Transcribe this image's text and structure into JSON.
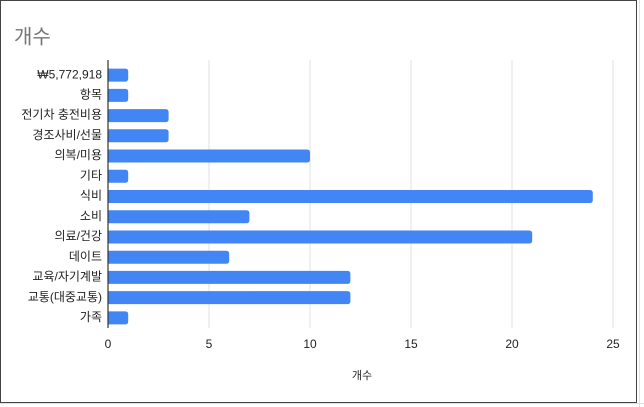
{
  "chart_data": {
    "type": "bar",
    "orientation": "horizontal",
    "title": "개수",
    "x_label": "개수",
    "categories": [
      "₩5,772,918",
      "항목",
      "전기차 충전비용",
      "경조사비/선물",
      "의복/미용",
      "기타",
      "식비",
      "소비",
      "의료/건강",
      "데이트",
      "교육/자기계발",
      "교통(대중교통)",
      "가족"
    ],
    "values": [
      1,
      1,
      3,
      3,
      10,
      1,
      24,
      7,
      21,
      6,
      12,
      12,
      1
    ],
    "color": "#4285f4",
    "xlim": [
      0,
      25
    ],
    "xticks": [
      0,
      5,
      10,
      15,
      20,
      25
    ],
    "grid": true
  }
}
